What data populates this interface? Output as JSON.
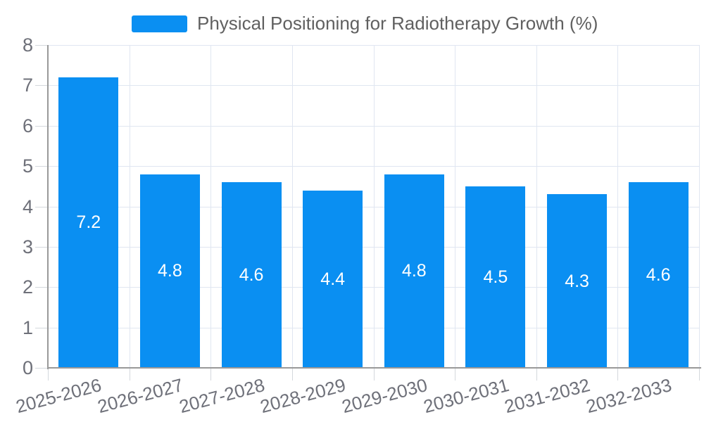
{
  "chart_data": {
    "type": "bar",
    "title": "Physical Positioning for Radiotherapy Growth (%)",
    "categories": [
      "2025-2026",
      "2026-2027",
      "2027-2028",
      "2028-2029",
      "2029-2030",
      "2030-2031",
      "2031-2032",
      "2032-2033"
    ],
    "values": [
      7.2,
      4.8,
      4.6,
      4.4,
      4.8,
      4.5,
      4.3,
      4.6
    ],
    "data_labels": [
      "7.2",
      "4.8",
      "4.6",
      "4.4",
      "4.8",
      "4.5",
      "4.3",
      "4.6"
    ],
    "xlabel": "",
    "ylabel": "",
    "ylim": [
      0,
      8
    ],
    "y_ticks": [
      0,
      1,
      2,
      3,
      4,
      5,
      6,
      7,
      8
    ],
    "grid": "on",
    "legend_position": "top",
    "bar_color": "#0a8ff2",
    "bar_label_color": "#ffffff"
  },
  "legend": {
    "label": "Physical Positioning for Radiotherapy Growth (%)"
  }
}
